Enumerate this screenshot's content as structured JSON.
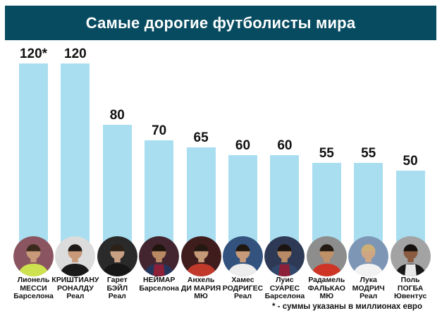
{
  "header": {
    "title": "Самые дорогие футболисты мира"
  },
  "footnote": "* - суммы указаны в миллионах евро",
  "colors": {
    "page_bg": "#ffffff",
    "header_bg": "#074b60",
    "header_text": "#ffffff",
    "bar": "#a9def0",
    "label_text": "#111111"
  },
  "chart_data": {
    "type": "bar",
    "title": "Самые дорогие футболисты мира",
    "ylim": [
      0,
      130
    ],
    "grid": false,
    "legend": "none",
    "annotations": [
      "* - суммы указаны в миллионах евро"
    ],
    "categories": [
      "Лионель МЕССИ Барселона",
      "КРИШТИАНУ РОНАЛДУ Реал",
      "Гарет БЭЙЛ Реал",
      "НЕЙМАР Барселона",
      "Анхель ДИ МАРИЯ МЮ",
      "Хамес РОДРИГЕС Реал",
      "Луис СУАРЕС Барселона",
      "Радамель ФАЛЬКАО МЮ",
      "Лука МОДРИЧ Реал",
      "Поль ПОГБА Ювентус"
    ],
    "values": [
      120,
      120,
      80,
      70,
      65,
      60,
      60,
      55,
      55,
      50
    ],
    "value_labels": [
      "120*",
      "120",
      "80",
      "70",
      "65",
      "60",
      "60",
      "55",
      "55",
      "50"
    ],
    "players": [
      {
        "name_lines": [
          "Лионель",
          "МЕССИ",
          "Барселона"
        ],
        "value": 120,
        "label": "120*",
        "photo": {
          "bg": "#8a5560",
          "shirt": "#cde24e",
          "skin": "#c89a7a",
          "hair": "#3a2a1d"
        }
      },
      {
        "name_lines": [
          "КРИШТИАНУ",
          "РОНАЛДУ",
          "Реал"
        ],
        "value": 120,
        "label": "120",
        "photo": {
          "bg": "#dcdcdc",
          "shirt": "#1a1a1a",
          "skin": "#c89a7a",
          "hair": "#1e1a17"
        }
      },
      {
        "name_lines": [
          "Гарет",
          "БЭЙЛ",
          "Реал"
        ],
        "value": 80,
        "label": "80",
        "photo": {
          "bg": "#2a2a2a",
          "shirt": "#161616",
          "skin": "#c9a083",
          "hair": "#2c2118"
        }
      },
      {
        "name_lines": [
          "НЕЙМАР",
          "Барселона"
        ],
        "value": 70,
        "label": "70",
        "photo": {
          "bg": "#43252f",
          "shirt": "#24355c",
          "shirt2": "#8c2038",
          "skin": "#b98963",
          "hair": "#1f150f"
        }
      },
      {
        "name_lines": [
          "Анхель",
          "ДИ МАРИЯ",
          "МЮ"
        ],
        "value": 65,
        "label": "65",
        "photo": {
          "bg": "#401d1d",
          "shirt": "#c0392b",
          "skin": "#c59a78",
          "hair": "#241812"
        }
      },
      {
        "name_lines": [
          "Хамес",
          "РОДРИГЕС",
          "Реал"
        ],
        "value": 60,
        "label": "60",
        "photo": {
          "bg": "#33527e",
          "shirt": "#ededed",
          "skin": "#c79a79",
          "hair": "#201711"
        }
      },
      {
        "name_lines": [
          "Луис",
          "СУА́РЕС",
          "Барселона"
        ],
        "value": 60,
        "label": "60",
        "photo": {
          "bg": "#2e3a55",
          "shirt": "#31476b",
          "shirt2": "#8c2038",
          "skin": "#b98a66",
          "hair": "#1c1410"
        }
      },
      {
        "name_lines": [
          "Радамель",
          "ФАЛЬКАО",
          "МЮ"
        ],
        "value": 55,
        "label": "55",
        "photo": {
          "bg": "#8d8d8d",
          "shirt": "#cf3526",
          "skin": "#c09066",
          "hair": "#241a12"
        }
      },
      {
        "name_lines": [
          "Лука",
          "МОДРИЧ",
          "Реал"
        ],
        "value": 55,
        "label": "55",
        "photo": {
          "bg": "#7d96b5",
          "shirt": "#f2f2f2",
          "skin": "#cfa684",
          "hair": "#cdb078"
        }
      },
      {
        "name_lines": [
          "Поль",
          "ПОГБА",
          "Ювентус"
        ],
        "value": 50,
        "label": "50",
        "photo": {
          "bg": "#a3a3a3",
          "shirt": "#181818",
          "shirt2": "#e8e8e8",
          "skin": "#8a5b40",
          "hair": "#15100c"
        }
      }
    ]
  }
}
